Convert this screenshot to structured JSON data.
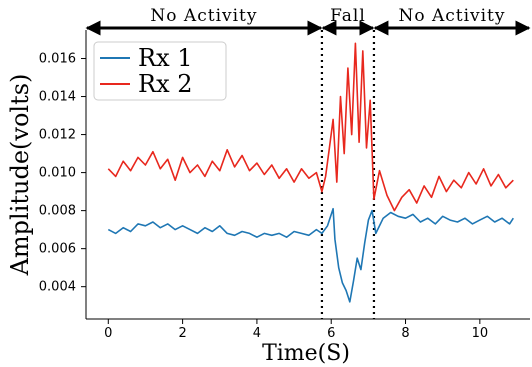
{
  "chart_data": {
    "type": "line",
    "xlabel": "Time(S)",
    "ylabel": "Amplitude(volts)",
    "xlim": [
      -0.6,
      11.35
    ],
    "ylim": [
      0.0023,
      0.0175
    ],
    "xticks": [
      0,
      2,
      4,
      6,
      8,
      10
    ],
    "xtick_labels": [
      "0",
      "2",
      "4",
      "6",
      "8",
      "10"
    ],
    "yticks": [
      0.004,
      0.006,
      0.008,
      0.01,
      0.012,
      0.014,
      0.016
    ],
    "ytick_labels": [
      "0.004",
      "0.006",
      "0.008",
      "0.010",
      "0.012",
      "0.014",
      "0.016"
    ],
    "grid": false,
    "legend_position": "top-left",
    "phases": [
      {
        "label": "No Activity",
        "start": -0.6,
        "end": 5.75
      },
      {
        "label": "Fall",
        "start": 5.75,
        "end": 7.15
      },
      {
        "label": "No Activity",
        "start": 7.15,
        "end": 11.35
      }
    ],
    "boundaries": [
      5.75,
      7.15
    ],
    "series": [
      {
        "name": "Rx  1",
        "color": "#1f77b4",
        "x": [
          0,
          0.2,
          0.4,
          0.6,
          0.8,
          1.0,
          1.2,
          1.4,
          1.6,
          1.8,
          2.0,
          2.2,
          2.4,
          2.6,
          2.8,
          3.0,
          3.2,
          3.4,
          3.6,
          3.8,
          4.0,
          4.2,
          4.4,
          4.6,
          4.8,
          5.0,
          5.2,
          5.4,
          5.6,
          5.75,
          5.9,
          6.05,
          6.1,
          6.2,
          6.3,
          6.4,
          6.5,
          6.6,
          6.7,
          6.8,
          6.9,
          7.0,
          7.1,
          7.2,
          7.4,
          7.6,
          7.8,
          8.0,
          8.2,
          8.4,
          8.6,
          8.8,
          9.0,
          9.2,
          9.4,
          9.6,
          9.8,
          10.0,
          10.2,
          10.4,
          10.6,
          10.8,
          10.9
        ],
        "values": [
          0.007,
          0.0068,
          0.0071,
          0.0069,
          0.0073,
          0.0072,
          0.0074,
          0.0071,
          0.0073,
          0.007,
          0.0072,
          0.007,
          0.0068,
          0.0071,
          0.0069,
          0.0072,
          0.0068,
          0.0067,
          0.0069,
          0.0068,
          0.0066,
          0.0068,
          0.0067,
          0.0068,
          0.0066,
          0.0069,
          0.0068,
          0.0067,
          0.007,
          0.0068,
          0.0072,
          0.0081,
          0.0065,
          0.005,
          0.0042,
          0.0038,
          0.0032,
          0.0043,
          0.0055,
          0.0049,
          0.0063,
          0.0075,
          0.008,
          0.0068,
          0.0076,
          0.0079,
          0.0077,
          0.0076,
          0.0078,
          0.0074,
          0.0076,
          0.0073,
          0.0077,
          0.0075,
          0.0074,
          0.0076,
          0.0073,
          0.0075,
          0.0077,
          0.0074,
          0.0076,
          0.0073,
          0.0076
        ]
      },
      {
        "name": "Rx  2",
        "color": "#e8281e",
        "x": [
          0,
          0.2,
          0.4,
          0.6,
          0.8,
          1.0,
          1.2,
          1.4,
          1.6,
          1.8,
          2.0,
          2.2,
          2.4,
          2.6,
          2.8,
          3.0,
          3.2,
          3.4,
          3.6,
          3.8,
          4.0,
          4.2,
          4.4,
          4.6,
          4.8,
          5.0,
          5.2,
          5.4,
          5.6,
          5.75,
          5.85,
          5.95,
          6.05,
          6.15,
          6.25,
          6.35,
          6.45,
          6.55,
          6.65,
          6.75,
          6.85,
          6.95,
          7.05,
          7.15,
          7.3,
          7.5,
          7.7,
          7.9,
          8.1,
          8.3,
          8.5,
          8.7,
          8.9,
          9.1,
          9.3,
          9.5,
          9.7,
          9.9,
          10.1,
          10.3,
          10.5,
          10.7,
          10.9
        ],
        "values": [
          0.0102,
          0.0098,
          0.0106,
          0.0101,
          0.0108,
          0.0104,
          0.0111,
          0.0102,
          0.0107,
          0.0096,
          0.0108,
          0.01,
          0.0104,
          0.0098,
          0.0106,
          0.0101,
          0.0112,
          0.0103,
          0.0109,
          0.0101,
          0.0105,
          0.0099,
          0.0104,
          0.0097,
          0.0102,
          0.0095,
          0.0102,
          0.0097,
          0.01,
          0.009,
          0.0098,
          0.0113,
          0.0128,
          0.0095,
          0.014,
          0.011,
          0.0155,
          0.012,
          0.0168,
          0.0116,
          0.0164,
          0.0113,
          0.0138,
          0.0086,
          0.0101,
          0.0088,
          0.008,
          0.0087,
          0.0091,
          0.0084,
          0.0093,
          0.0087,
          0.0098,
          0.009,
          0.0096,
          0.0092,
          0.01,
          0.0094,
          0.0102,
          0.0093,
          0.0099,
          0.0092,
          0.0096
        ]
      }
    ]
  }
}
